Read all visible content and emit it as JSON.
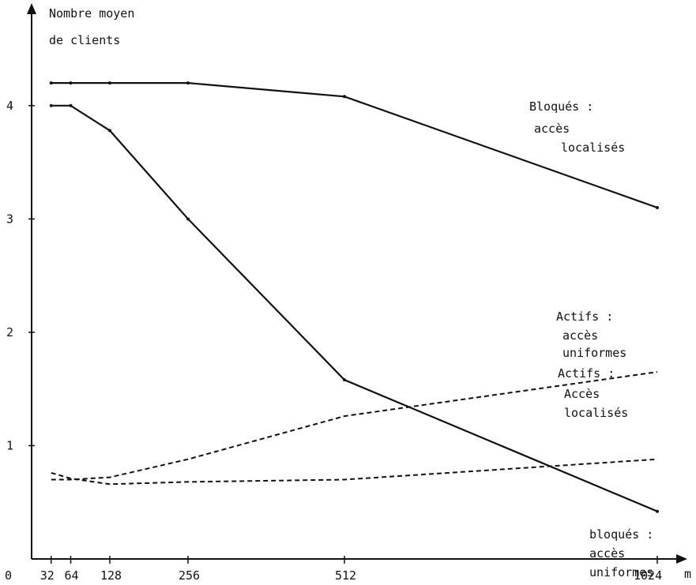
{
  "chart_data": {
    "type": "line",
    "ylabel_line1": "Nombre moyen",
    "ylabel_line2": "de clients",
    "xlabel": "m",
    "origin_label": "0",
    "xlim": [
      0,
      1024
    ],
    "ylim": [
      0,
      4.5
    ],
    "x_ticks": [
      {
        "value": 32,
        "label": "32"
      },
      {
        "value": 64,
        "label": "64"
      },
      {
        "value": 128,
        "label": "128"
      },
      {
        "value": 256,
        "label": "256"
      },
      {
        "value": 512,
        "label": "512"
      },
      {
        "value": 1024,
        "label": "1024"
      }
    ],
    "y_ticks": [
      {
        "value": 1,
        "label": "1"
      },
      {
        "value": 2,
        "label": "2"
      },
      {
        "value": 3,
        "label": "3"
      },
      {
        "value": 4,
        "label": "4"
      }
    ],
    "series": [
      {
        "label_lines": [
          "Bloqués :",
          "accès",
          "localisés"
        ],
        "style": "solid",
        "x": [
          32,
          64,
          128,
          256,
          512,
          1024
        ],
        "values": [
          4.2,
          4.2,
          4.2,
          4.2,
          4.08,
          3.1
        ]
      },
      {
        "label_lines": [
          "bloqués :",
          "accès",
          "uniformes"
        ],
        "style": "solid",
        "x": [
          32,
          64,
          128,
          256,
          512,
          1024
        ],
        "values": [
          4.0,
          4.0,
          3.78,
          3.0,
          1.58,
          0.42
        ]
      },
      {
        "label_lines": [
          "Actifs :",
          "accès",
          "uniformes"
        ],
        "style": "dashed",
        "x": [
          32,
          64,
          128,
          256,
          512,
          1024
        ],
        "values": [
          0.7,
          0.7,
          0.72,
          0.88,
          1.26,
          1.65
        ]
      },
      {
        "label_lines": [
          "Actifs :",
          "Accès",
          "localisés"
        ],
        "style": "dashed",
        "x": [
          32,
          64,
          128,
          256,
          512,
          1024
        ],
        "values": [
          0.76,
          0.71,
          0.66,
          0.68,
          0.7,
          0.88
        ]
      }
    ]
  }
}
